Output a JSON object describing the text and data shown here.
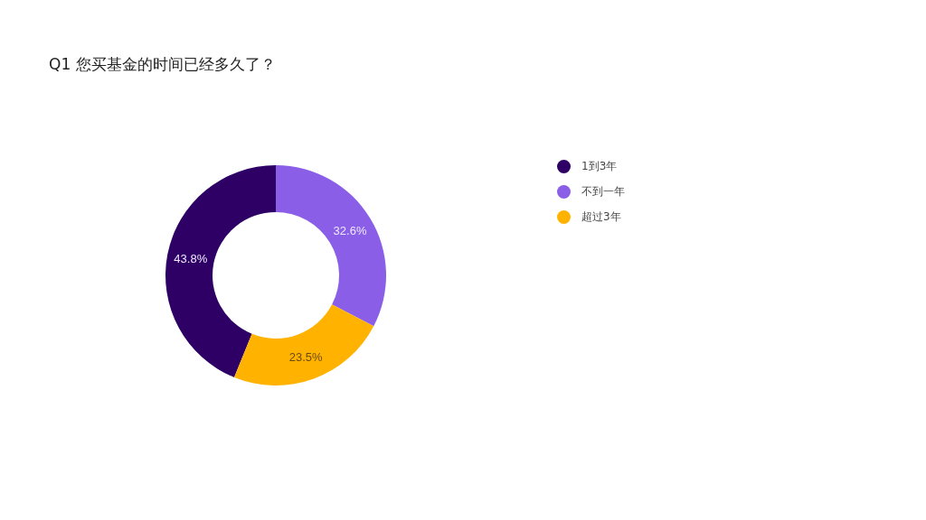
{
  "chart_data": {
    "type": "donut",
    "title": "Q1 您买基金的时间已经多久了？",
    "categories": [
      "1到3年",
      "不到一年",
      "超过3年"
    ],
    "values": [
      43.8,
      32.6,
      23.5
    ],
    "value_labels": [
      "43.8%",
      "32.6%",
      "23.5%"
    ],
    "colors": [
      "#2e0066",
      "#8a5ee6",
      "#ffb300"
    ],
    "legend": "right"
  }
}
